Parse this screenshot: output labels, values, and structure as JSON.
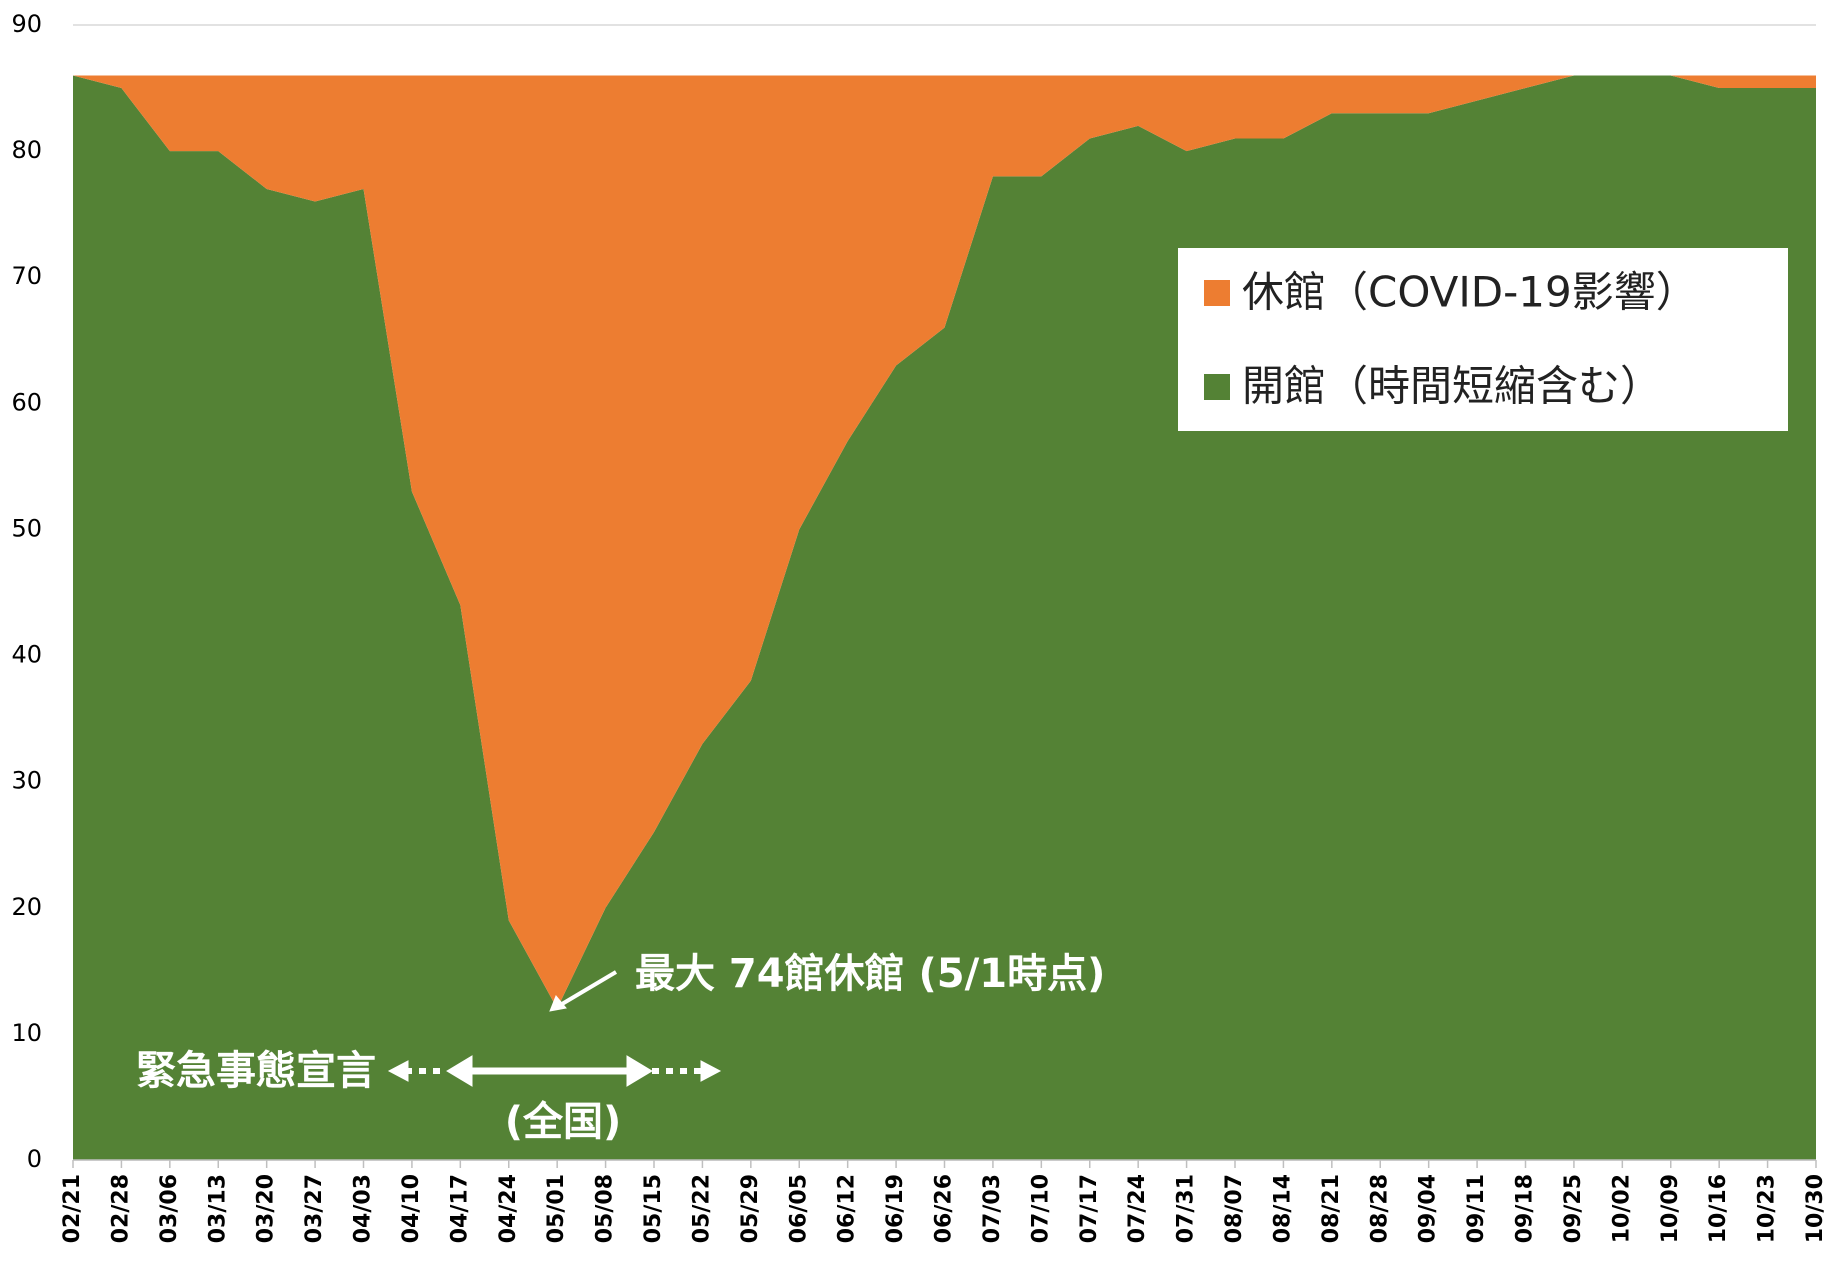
{
  "chart_data": {
    "type": "stacked_area",
    "categories": [
      "02/21",
      "02/28",
      "03/06",
      "03/13",
      "03/20",
      "03/27",
      "04/03",
      "04/10",
      "04/17",
      "04/24",
      "05/01",
      "05/08",
      "05/15",
      "05/22",
      "05/29",
      "06/05",
      "06/12",
      "06/19",
      "06/26",
      "07/03",
      "07/10",
      "07/17",
      "07/24",
      "07/31",
      "08/07",
      "08/14",
      "08/21",
      "08/28",
      "09/04",
      "09/11",
      "09/18",
      "09/25",
      "10/02",
      "10/09",
      "10/16",
      "10/23",
      "10/30"
    ],
    "series": [
      {
        "name": "開館（時間短縮含む）",
        "color": "#548235",
        "values": [
          86,
          85,
          80,
          80,
          77,
          76,
          77,
          53,
          44,
          19,
          12,
          20,
          26,
          33,
          38,
          50,
          57,
          63,
          66,
          78,
          78,
          81,
          82,
          80,
          81,
          81,
          83,
          83,
          83,
          84,
          85,
          86,
          86,
          86,
          85,
          85,
          85
        ]
      },
      {
        "name": "休館（COVID-19影響）",
        "color": "#ed7d31",
        "values": [
          0,
          1,
          6,
          6,
          9,
          10,
          9,
          33,
          42,
          67,
          74,
          66,
          60,
          53,
          48,
          36,
          29,
          23,
          20,
          8,
          8,
          5,
          4,
          6,
          5,
          5,
          3,
          3,
          3,
          2,
          1,
          0,
          0,
          0,
          1,
          1,
          1
        ]
      }
    ],
    "legend_order": [
      1,
      0
    ],
    "annotations": [
      "最大 74館休館 (5/1時点)",
      "緊急事態宣言",
      "(全国)"
    ],
    "ylim": [
      0,
      90
    ],
    "yticks": [
      0,
      10,
      20,
      30,
      40,
      50,
      60,
      70,
      80,
      90
    ],
    "grid": true
  }
}
